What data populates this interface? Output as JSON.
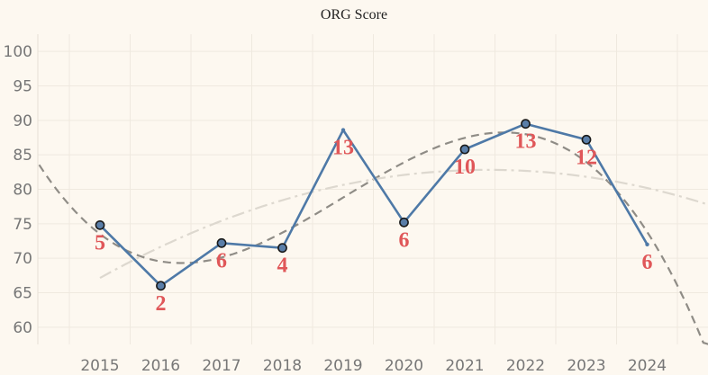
{
  "colors": {
    "background": "#fdf8f0",
    "line": "#4e79a7",
    "marker_fill": "#5a7ea8",
    "marker_stroke": "#1a1a1a",
    "label": "#e05759",
    "trend_dark": "#8f8c86",
    "trend_light": "#ddd8cf",
    "grid": "#efe9df"
  },
  "chart_data": {
    "type": "line",
    "title": "ORG Score",
    "xlabel": "",
    "ylabel": "",
    "x": [
      "2015",
      "2016",
      "2017",
      "2018",
      "2019",
      "2020",
      "2021",
      "2022",
      "2023",
      "2024"
    ],
    "y_ticks": [
      "100",
      "95",
      "90",
      "85",
      "80",
      "75",
      "70",
      "65",
      "60"
    ],
    "ylim": [
      57.5,
      102.5
    ],
    "grid": true,
    "legend": "none",
    "series": [
      {
        "values": [
          74.8,
          66.0,
          72.2,
          71.5,
          88.6,
          75.2,
          85.8,
          89.5,
          87.2,
          72.0
        ],
        "markers": [
          true,
          true,
          true,
          true,
          false,
          true,
          true,
          true,
          true,
          false
        ],
        "labels": [
          "5",
          "2",
          "6",
          "4",
          "13",
          "6",
          "10",
          "13",
          "12",
          "6"
        ]
      }
    ],
    "trend_lines": [
      {
        "style": "dashed",
        "color": "dark"
      },
      {
        "style": "dash-dot",
        "color": "light"
      }
    ]
  }
}
